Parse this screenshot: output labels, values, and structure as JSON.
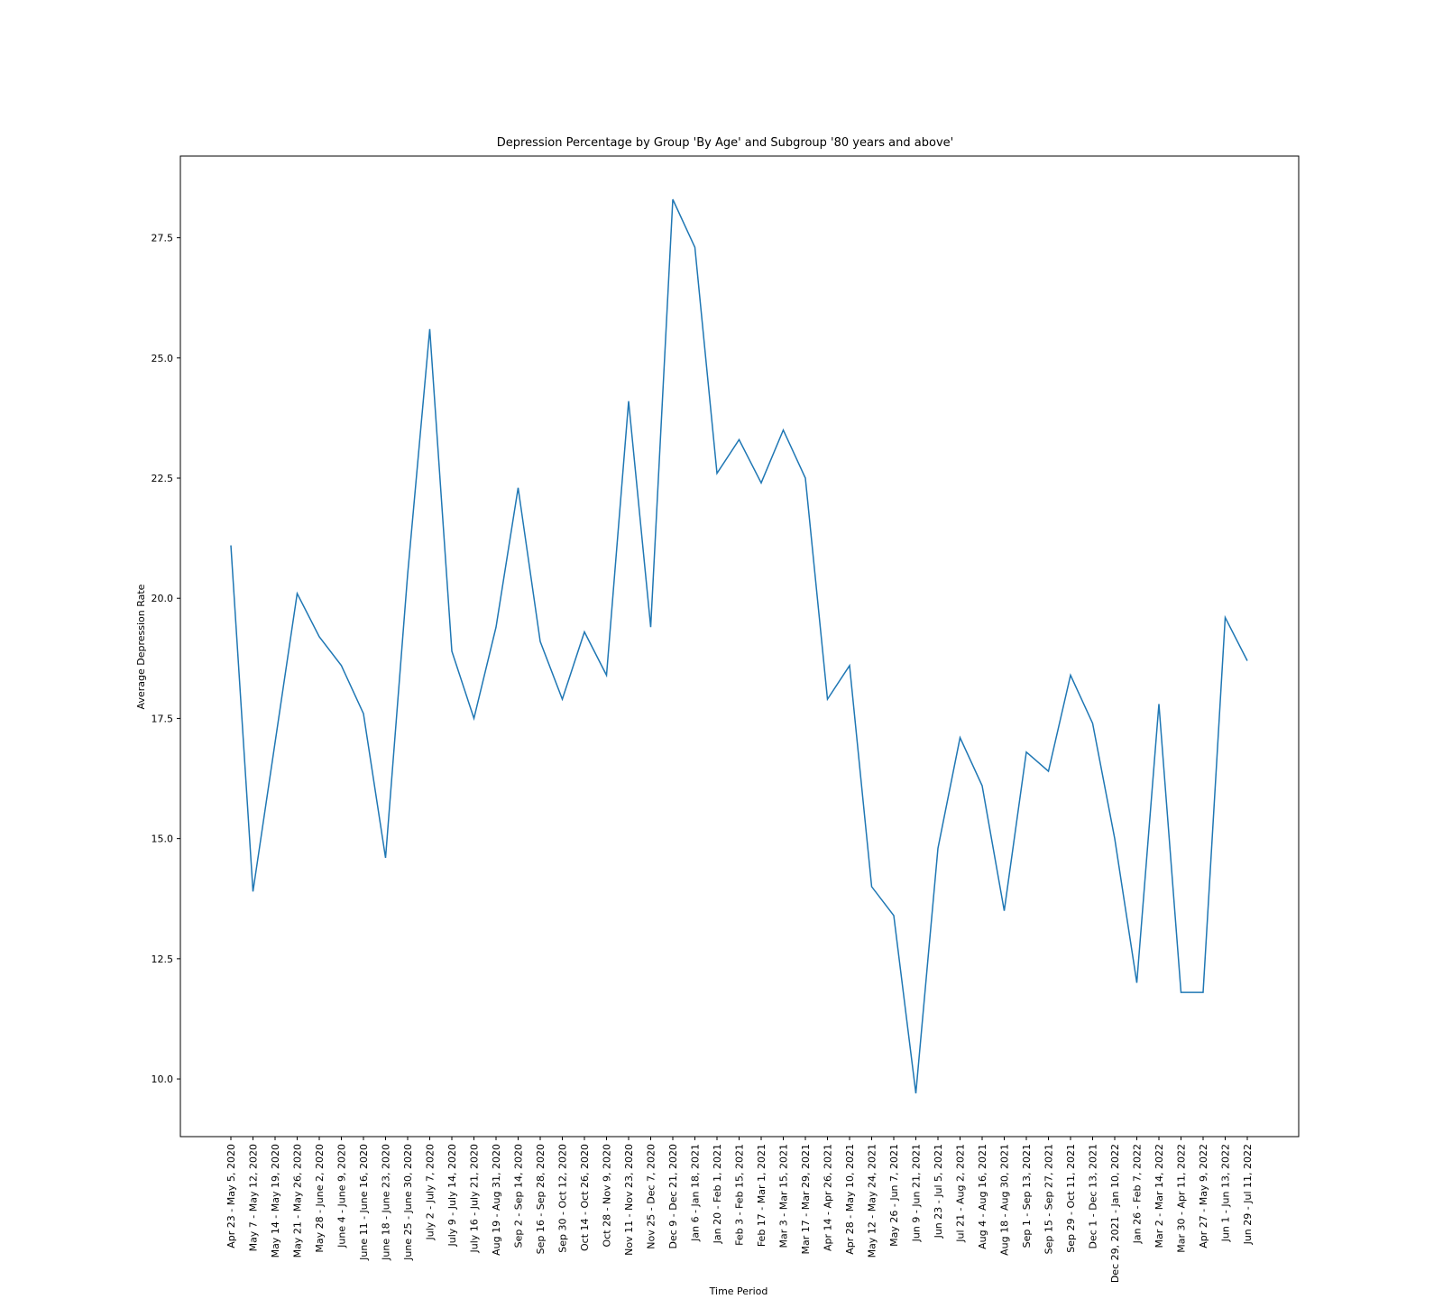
{
  "chart_data": {
    "type": "line",
    "title": "Depression Percentage by Group 'By Age' and Subgroup '80 years and above'",
    "xlabel": "Time Period",
    "ylabel": "Average Depression Rate",
    "ylim": [
      8.8,
      29.2
    ],
    "yticks": [
      "10.0",
      "12.5",
      "15.0",
      "17.5",
      "20.0",
      "22.5",
      "25.0",
      "27.5"
    ],
    "grid": false,
    "line_color": "#1f77b4",
    "categories": [
      "Apr 23 - May 5, 2020",
      "May 7 - May 12, 2020",
      "May 14 - May 19, 2020",
      "May 21 - May 26, 2020",
      "May 28 - June 2, 2020",
      "June 4 - June 9, 2020",
      "June 11 - June 16, 2020",
      "June 18 - June 23, 2020",
      "June 25 - June 30, 2020",
      "July 2 - July 7, 2020",
      "July 9 - July 14, 2020",
      "July 16 - July 21, 2020",
      "Aug 19 - Aug 31, 2020",
      "Sep 2 - Sep 14, 2020",
      "Sep 16 - Sep 28, 2020",
      "Sep 30 - Oct 12, 2020",
      "Oct 14 - Oct 26, 2020",
      "Oct 28 - Nov 9, 2020",
      "Nov 11 - Nov 23, 2020",
      "Nov 25 - Dec 7, 2020",
      "Dec 9 - Dec 21, 2020",
      "Jan 6 - Jan 18, 2021",
      "Jan 20 - Feb 1, 2021",
      "Feb 3 - Feb 15, 2021",
      "Feb 17 - Mar 1, 2021",
      "Mar 3 - Mar 15, 2021",
      "Mar 17 - Mar 29, 2021",
      "Apr 14 - Apr 26, 2021",
      "Apr 28 - May 10, 2021",
      "May 12 - May 24, 2021",
      "May 26 - Jun 7, 2021",
      "Jun 9 - Jun 21, 2021",
      "Jun 23 - Jul 5, 2021",
      "Jul 21 - Aug 2, 2021",
      "Aug 4 - Aug 16, 2021",
      "Aug 18 - Aug 30, 2021",
      "Sep 1 - Sep 13, 2021",
      "Sep 15 - Sep 27, 2021",
      "Sep 29 - Oct 11, 2021",
      "Dec 1 - Dec 13, 2021",
      "Dec 29, 2021 - Jan 10, 2022",
      "Jan 26 - Feb 7, 2022",
      "Mar 2 - Mar 14, 2022",
      "Mar 30 - Apr 11, 2022",
      "Apr 27 - May 9, 2022",
      "Jun 1 - Jun 13, 2022",
      "Jun 29 - Jul 11, 2022"
    ],
    "values": [
      21.1,
      13.9,
      17.0,
      20.1,
      19.2,
      18.6,
      17.6,
      14.6,
      20.5,
      25.6,
      18.9,
      17.5,
      19.4,
      22.3,
      19.1,
      17.9,
      19.3,
      18.4,
      24.1,
      19.4,
      28.3,
      27.3,
      22.6,
      23.3,
      22.4,
      23.5,
      22.5,
      17.9,
      18.6,
      14.0,
      13.4,
      9.7,
      14.8,
      17.1,
      16.1,
      13.5,
      16.8,
      16.4,
      18.4,
      17.4,
      15.0,
      12.0,
      17.8,
      11.8,
      11.8,
      19.6,
      18.7
    ]
  }
}
